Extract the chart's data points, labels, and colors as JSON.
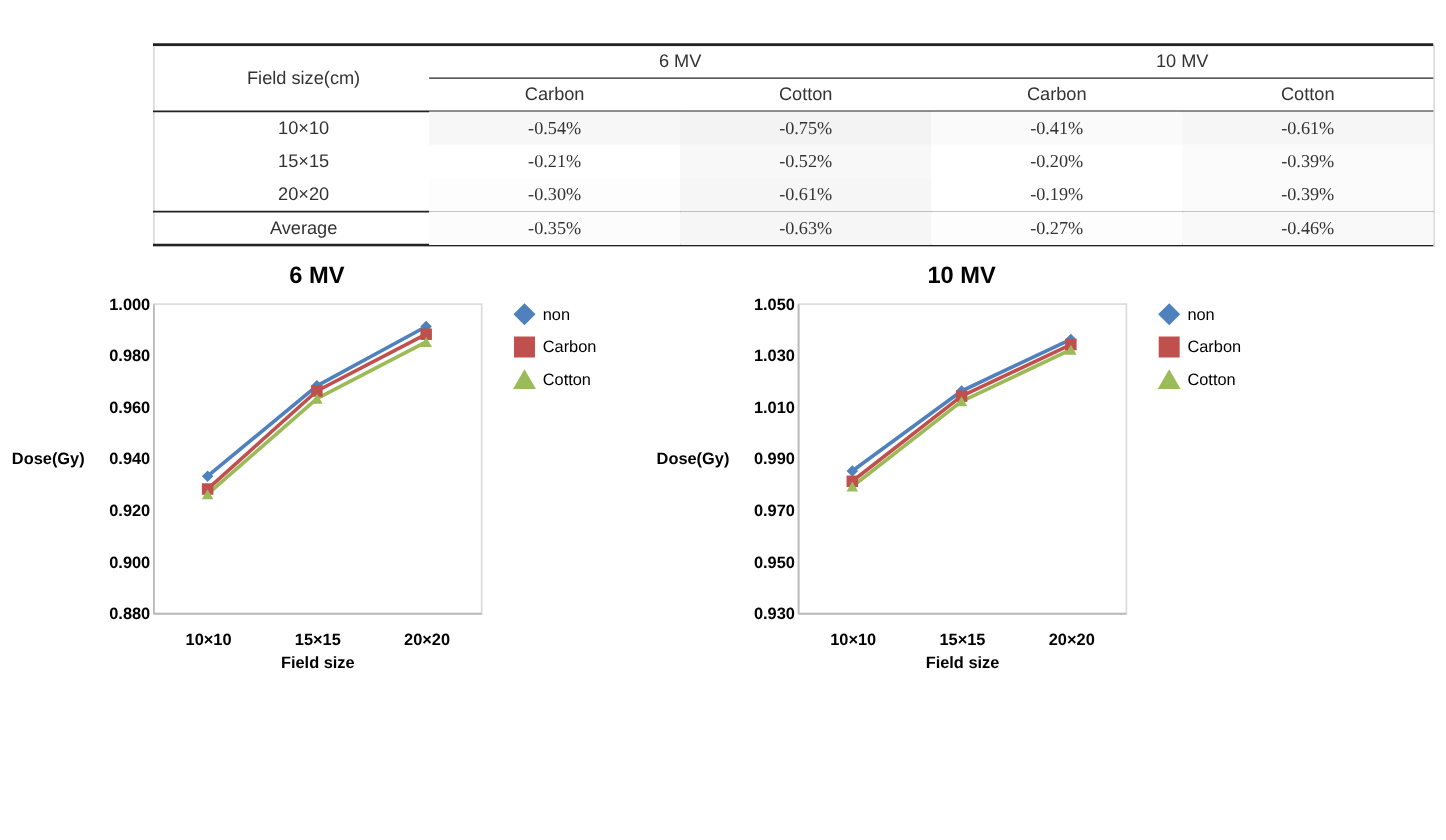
{
  "chart_data": [
    {
      "type": "heatmap",
      "categories": [
        "Carbon",
        "Cotton",
        "Carbon",
        "Cotton"
      ],
      "y_categories": [
        "10×10",
        "15×15",
        "20×20",
        "Average"
      ],
      "cells": [
        [
          -0.54,
          -0.75,
          -0.41,
          -0.61
        ],
        [
          -0.21,
          -0.52,
          -0.2,
          -0.39
        ],
        [
          -0.3,
          -0.61,
          -0.19,
          -0.39
        ],
        [
          -0.35,
          -0.63,
          -0.27,
          -0.46
        ]
      ],
      "cell_labels": [
        [
          "-0.54%",
          "-0.75%",
          "-0.41%",
          "-0.61%"
        ],
        [
          "-0.21%",
          "-0.52%",
          "-0.20%",
          "-0.39%"
        ],
        [
          "-0.30%",
          "-0.61%",
          "-0.19%",
          "-0.39%"
        ],
        [
          "-0.35%",
          "-0.63%",
          "-0.27%",
          "-0.46%"
        ]
      ],
      "annotations": [
        "Field size(cm)",
        "6 MV",
        "10 MV"
      ]
    },
    {
      "type": "line",
      "title": "6 MV",
      "xlabel": "Field size",
      "ylabel": "Dose(Gy)",
      "categories": [
        "10×10",
        "15×15",
        "20×20"
      ],
      "series": [
        {
          "name": "non",
          "color": "#4f81bd",
          "marker": "diamond",
          "values": [
            0.933,
            0.968,
            0.991
          ]
        },
        {
          "name": "Carbon",
          "color": "#c0504d",
          "marker": "square",
          "values": [
            0.928,
            0.966,
            0.988
          ]
        },
        {
          "name": "Cotton",
          "color": "#9bbb59",
          "marker": "triangle",
          "values": [
            0.926,
            0.963,
            0.985
          ]
        }
      ],
      "ylim": [
        0.88,
        1.0
      ],
      "yticks": [
        {
          "value": 0.88,
          "label": "0.880"
        },
        {
          "value": 0.9,
          "label": "0.900"
        },
        {
          "value": 0.92,
          "label": "0.920"
        },
        {
          "value": 0.94,
          "label": "0.940"
        },
        {
          "value": 0.96,
          "label": "0.960"
        },
        {
          "value": 0.98,
          "label": "0.980"
        },
        {
          "value": 1.0,
          "label": "1.000"
        }
      ],
      "grid": false,
      "legend": "right"
    },
    {
      "type": "line",
      "title": "10 MV",
      "xlabel": "Field size",
      "ylabel": "Dose(Gy)",
      "categories": [
        "10×10",
        "15×15",
        "20×20"
      ],
      "series": [
        {
          "name": "non",
          "color": "#4f81bd",
          "marker": "diamond",
          "values": [
            0.985,
            1.016,
            1.036
          ]
        },
        {
          "name": "Carbon",
          "color": "#c0504d",
          "marker": "square",
          "values": [
            0.981,
            1.014,
            1.034
          ]
        },
        {
          "name": "Cotton",
          "color": "#9bbb59",
          "marker": "triangle",
          "values": [
            0.979,
            1.012,
            1.032
          ]
        }
      ],
      "ylim": [
        0.93,
        1.05
      ],
      "yticks": [
        {
          "value": 0.93,
          "label": "0.930"
        },
        {
          "value": 0.95,
          "label": "0.950"
        },
        {
          "value": 0.97,
          "label": "0.970"
        },
        {
          "value": 0.99,
          "label": "0.990"
        },
        {
          "value": 1.01,
          "label": "1.010"
        },
        {
          "value": 1.03,
          "label": "1.030"
        },
        {
          "value": 1.05,
          "label": "1.050"
        }
      ],
      "grid": false,
      "legend": "right"
    }
  ]
}
